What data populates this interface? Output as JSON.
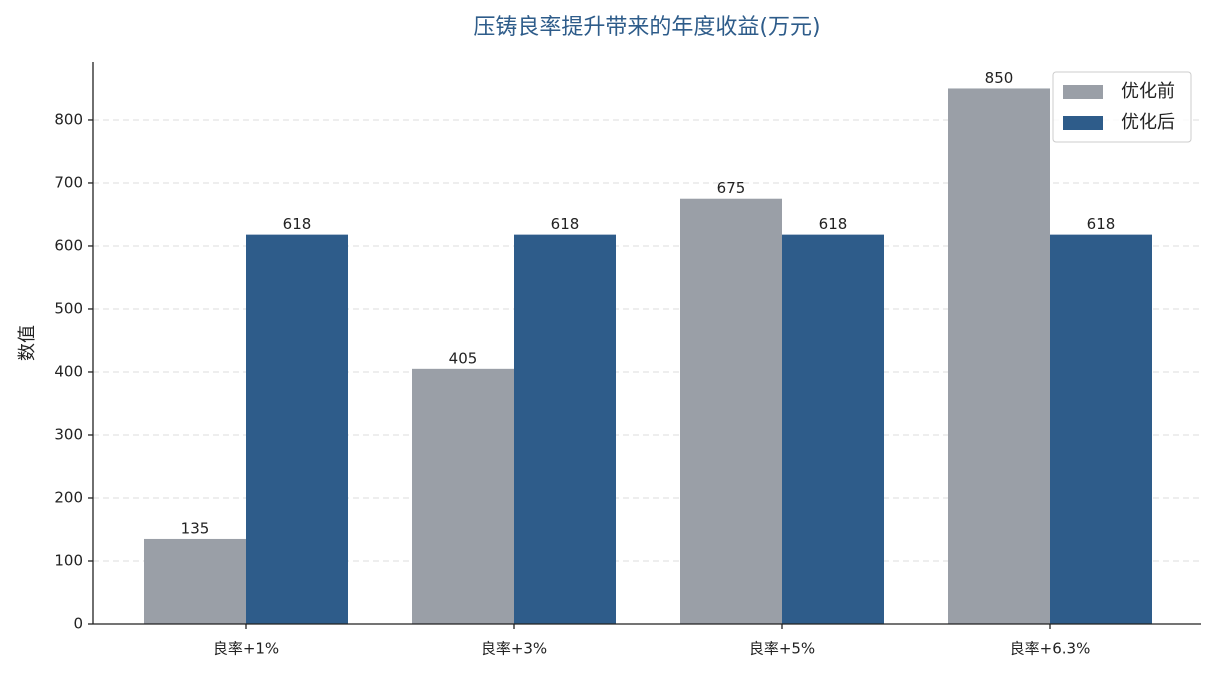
{
  "chart_data": {
    "type": "bar",
    "title": "压铸良率提升带来的年度收益(万元)",
    "y_label": "数值",
    "categories": [
      "良率+1%",
      "良率+3%",
      "良率+5%",
      "良率+6.3%"
    ],
    "series": [
      {
        "name": "优化前",
        "color": "#9a9fa7",
        "values": [
          135,
          405,
          675,
          850
        ]
      },
      {
        "name": "优化后",
        "color": "#2e5c8a",
        "values": [
          618,
          618,
          618,
          618
        ]
      }
    ],
    "ylim": [
      0,
      892
    ],
    "yticks": [
      0,
      100,
      200,
      300,
      400,
      500,
      600,
      700,
      800
    ],
    "grid": true,
    "legend": "upper right",
    "title_color": "#2e5c8a"
  }
}
